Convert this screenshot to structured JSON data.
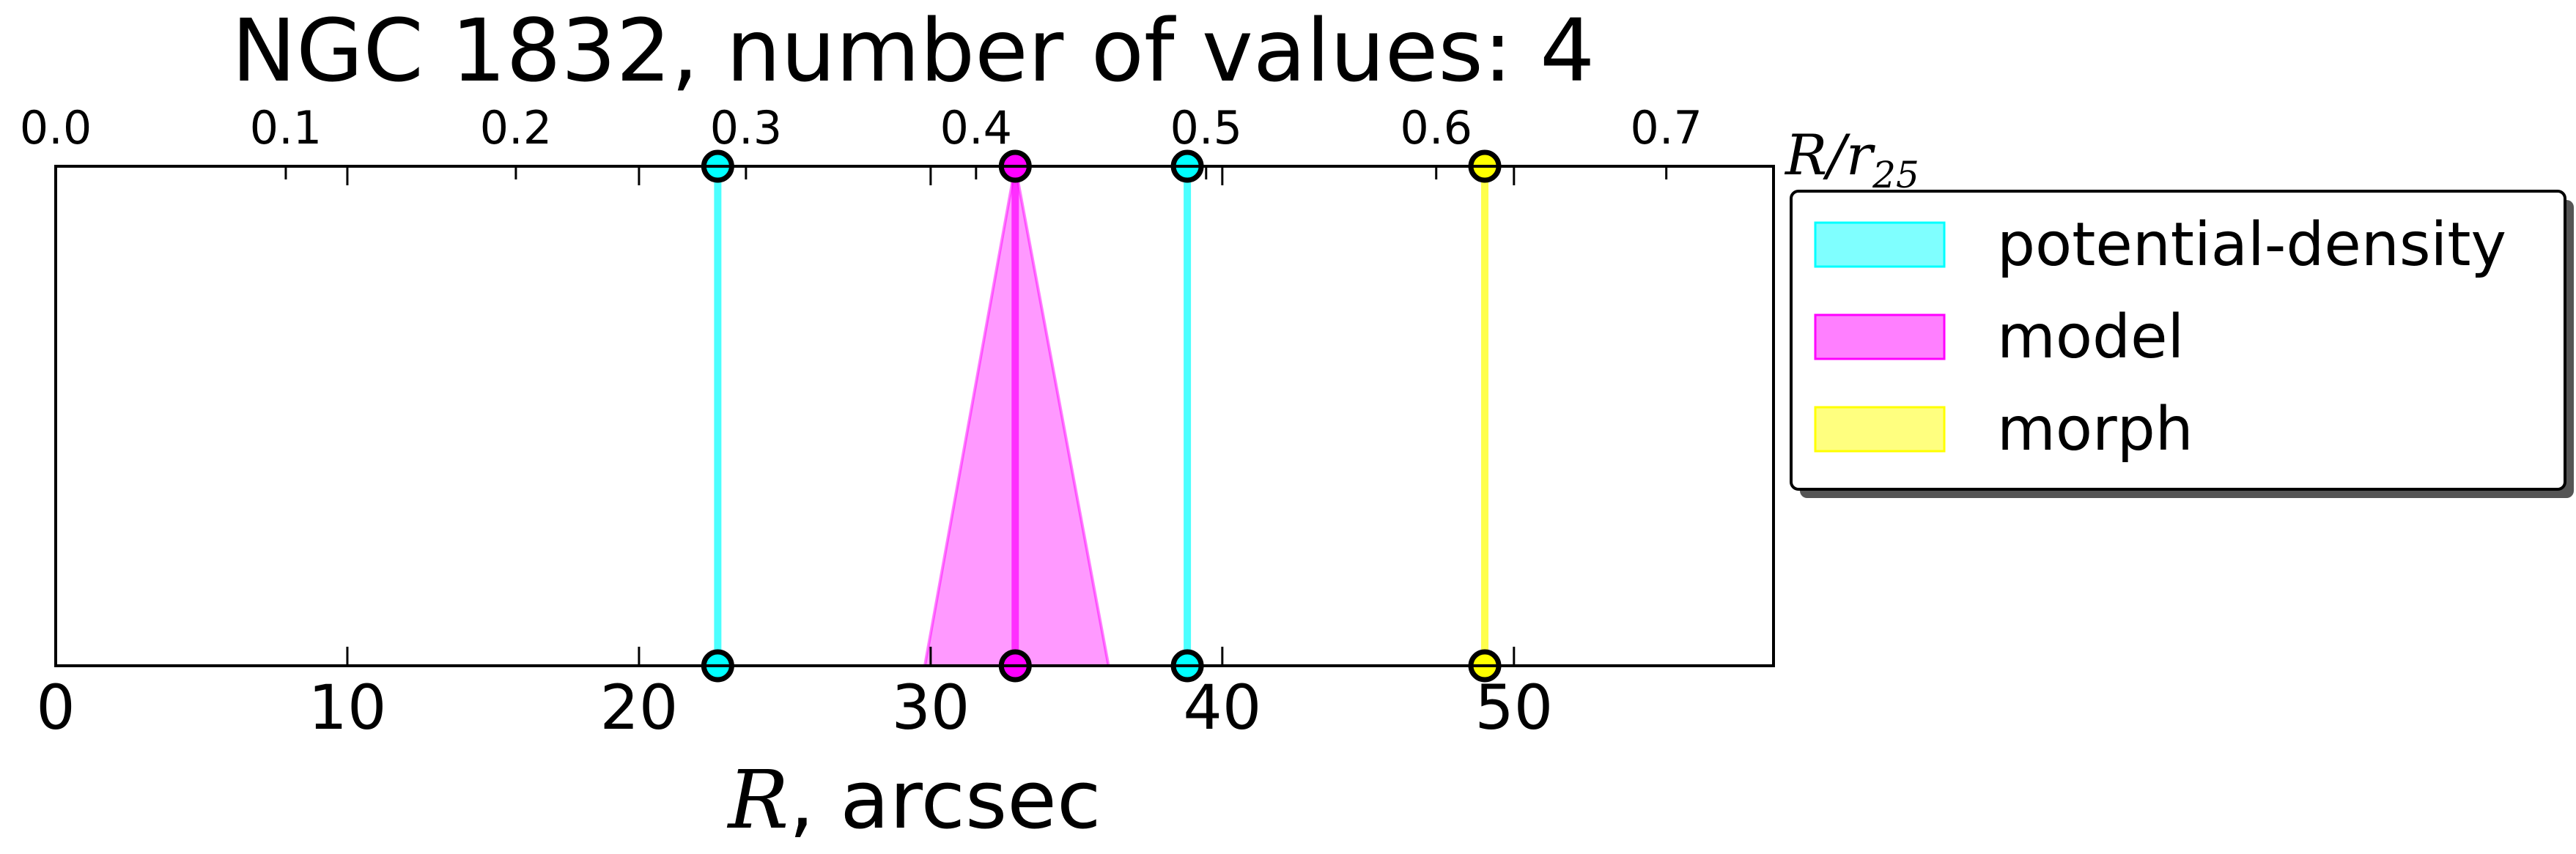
{
  "chart_data": {
    "type": "interval-lines",
    "title": "NGC 1832, number of values: 4",
    "xlabel": {
      "symbol": "R",
      "rest": ", arcsec"
    },
    "top_axis_label": {
      "symbol": "R/r",
      "subscript": "25"
    },
    "xlim": [
      0,
      58.9
    ],
    "top_xlim": [
      0,
      0.7466
    ],
    "bottom_ticks": [
      0,
      10,
      20,
      30,
      40,
      50
    ],
    "bottom_tick_labels": [
      "0",
      "10",
      "20",
      "30",
      "40",
      "50"
    ],
    "top_ticks": [
      0.0,
      0.1,
      0.2,
      0.3,
      0.4,
      0.5,
      0.6,
      0.7
    ],
    "top_tick_labels": [
      "0.0",
      "0.1",
      "0.2",
      "0.3",
      "0.4",
      "0.5",
      "0.6",
      "0.7"
    ],
    "grid": false,
    "legend_position": "outside-right",
    "series": [
      {
        "name": "potential-density",
        "color": "#00ffff",
        "values": [
          22.7,
          38.8
        ]
      },
      {
        "name": "model",
        "color": "#ff00ff",
        "values": [
          32.9
        ],
        "interval": [
          29.8,
          36.1
        ]
      },
      {
        "name": "morph",
        "color": "#ffff00",
        "values": [
          49.0
        ]
      }
    ]
  }
}
